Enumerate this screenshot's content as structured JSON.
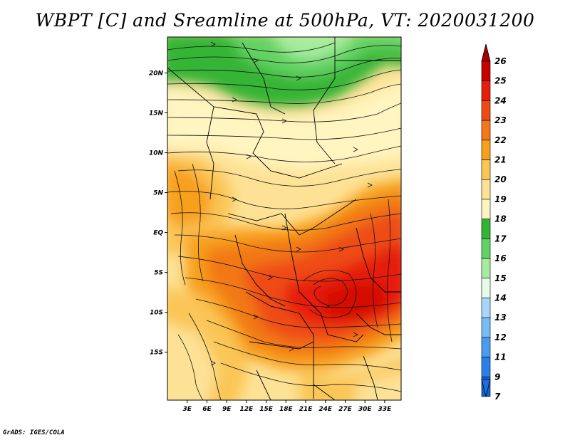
{
  "title": "WBPT [C] and Sreamline at 500hPa, VT: 2020031200",
  "credit": "GrADS: IGES/COLA",
  "map": {
    "lat_range": [
      -21,
      24.5
    ],
    "lon_range": [
      0,
      35.5
    ],
    "lat_ticks": [
      {
        "value": 20,
        "label": "20N"
      },
      {
        "value": 15,
        "label": "15N"
      },
      {
        "value": 10,
        "label": "10N"
      },
      {
        "value": 5,
        "label": "5N"
      },
      {
        "value": 0,
        "label": "EQ"
      },
      {
        "value": -5,
        "label": "5S"
      },
      {
        "value": -10,
        "label": "10S"
      },
      {
        "value": -15,
        "label": "15S"
      }
    ],
    "lon_ticks": [
      {
        "value": 3,
        "label": "3E"
      },
      {
        "value": 6,
        "label": "6E"
      },
      {
        "value": 9,
        "label": "9E"
      },
      {
        "value": 12,
        "label": "12E"
      },
      {
        "value": 15,
        "label": "15E"
      },
      {
        "value": 18,
        "label": "18E"
      },
      {
        "value": 21,
        "label": "21E"
      },
      {
        "value": 24,
        "label": "24E"
      },
      {
        "value": 27,
        "label": "27E"
      },
      {
        "value": 30,
        "label": "30E"
      },
      {
        "value": 33,
        "label": "33E"
      }
    ]
  },
  "colorbar": {
    "levels": [
      {
        "label": "26",
        "color": "#a50000"
      },
      {
        "label": "25",
        "color": "#c80000"
      },
      {
        "label": "24",
        "color": "#e61e0a"
      },
      {
        "label": "23",
        "color": "#ee4b14"
      },
      {
        "label": "22",
        "color": "#f27818"
      },
      {
        "label": "21",
        "color": "#f7a01e"
      },
      {
        "label": "20",
        "color": "#fac656"
      },
      {
        "label": "19",
        "color": "#fde296"
      },
      {
        "label": "18",
        "color": "#fff5c0"
      },
      {
        "label": "17",
        "color": "#34b434"
      },
      {
        "label": "16",
        "color": "#64d264"
      },
      {
        "label": "15",
        "color": "#a6ec9e"
      },
      {
        "label": "14",
        "color": "#e8fae8"
      },
      {
        "label": "13",
        "color": "#a8d6fa"
      },
      {
        "label": "12",
        "color": "#78bcf5"
      },
      {
        "label": "11",
        "color": "#4a9cf0"
      },
      {
        "label": "9",
        "color": "#2a80ea"
      },
      {
        "label": "7",
        "color": "#1464d2"
      }
    ],
    "below_color": "#1e6ee0"
  }
}
